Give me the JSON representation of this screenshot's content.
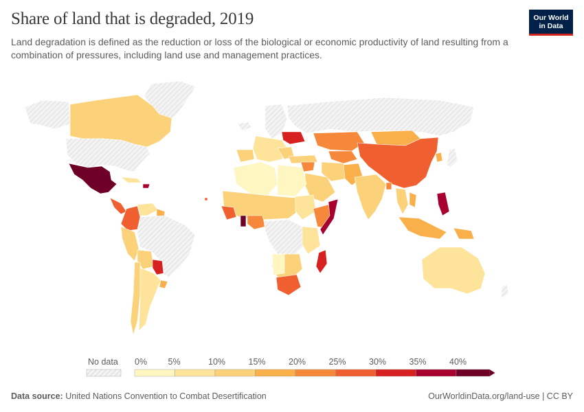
{
  "header": {
    "title": "Share of land that is degraded, 2019",
    "subtitle": "Land degradation is defined as the reduction or loss of the biological or economic productivity of land resulting from a combination of pressures, including land use and management practices."
  },
  "logo": {
    "line1": "Our World",
    "line2": "in Data",
    "bg_color": "#002147",
    "accent_color": "#ce261e"
  },
  "legend": {
    "no_data_label": "No data",
    "bins": [
      "0%",
      "5%",
      "10%",
      "15%",
      "20%",
      "25%",
      "30%",
      "35%",
      "40%"
    ],
    "colors": [
      "#fff6c2",
      "#fde49a",
      "#fbd27a",
      "#f9b04b",
      "#f5883a",
      "#ef5f2f",
      "#d72121",
      "#a8002e",
      "#6e0027"
    ]
  },
  "footer": {
    "source_label": "Data source:",
    "source_text": "United Nations Convention to Combat Desertification",
    "url_text": "OurWorldinData.org/land-use | CC BY"
  },
  "chart_data": {
    "type": "choropleth",
    "title": "Share of land that is degraded, 2019",
    "unit": "%",
    "year": 2019,
    "scale_min": 0,
    "scale_max": 45,
    "no_data_color": "#e8e8e8"
  }
}
